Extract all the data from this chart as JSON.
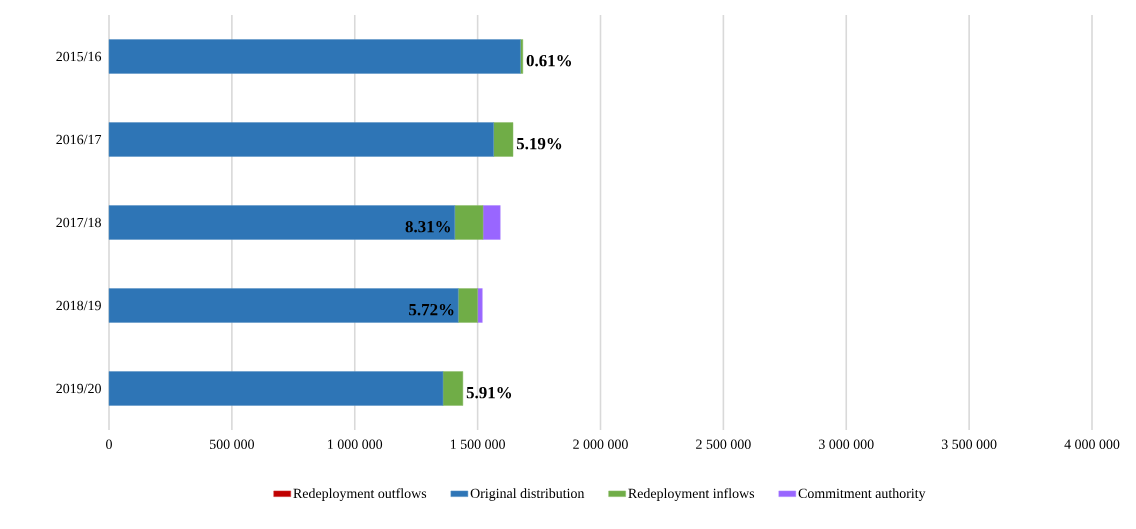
{
  "chart_data": {
    "type": "bar",
    "orientation": "horizontal",
    "stacked": true,
    "categories": [
      "2015/16",
      "2016/17",
      "2017/18",
      "2018/19",
      "2019/20"
    ],
    "series": [
      {
        "name": "Redeployment outflows",
        "color": "#c00000",
        "values": [
          null,
          null,
          null,
          null,
          null
        ]
      },
      {
        "name": "Original distribution",
        "color": "#2e75b6",
        "values": [
          1674000,
          1565000,
          1407000,
          1421000,
          1359000
        ]
      },
      {
        "name": "Redeployment inflows",
        "color": "#70ad47",
        "values": [
          10000,
          79000,
          115000,
          79000,
          81000
        ]
      },
      {
        "name": "Commitment authority",
        "color": "#9966ff",
        "values": [
          null,
          null,
          70000,
          19000,
          null
        ]
      }
    ],
    "xlim": [
      0,
      4000000
    ],
    "xticks": [
      0,
      {
        "value": 500000,
        "label": "500 000"
      },
      {
        "value": 1000000,
        "label": "1 000 000"
      },
      {
        "value": 1500000,
        "label": "1 500 000"
      },
      {
        "value": 2000000,
        "label": "2 000 000"
      },
      {
        "value": 2500000,
        "label": "2 500 000"
      },
      {
        "value": 3000000,
        "label": "3 000 000"
      },
      {
        "value": 3500000,
        "label": "3 500 000"
      },
      {
        "value": 4000000,
        "label": "4 000 000"
      }
    ],
    "grid": "x",
    "legend": "bottom",
    "annotations": [
      {
        "text": "0.61%",
        "x": 1684000,
        "y": "2015/16"
      },
      {
        "text": "5.19%",
        "x": 1644000,
        "y": "2016/17"
      },
      {
        "text": "8.31%",
        "x": 1407000,
        "y": "2017/18"
      },
      {
        "text": "5.72%",
        "x": 1421000,
        "y": "2018/19"
      },
      {
        "text": "5.91%",
        "x": 1440000,
        "y": "2019/20"
      }
    ]
  }
}
